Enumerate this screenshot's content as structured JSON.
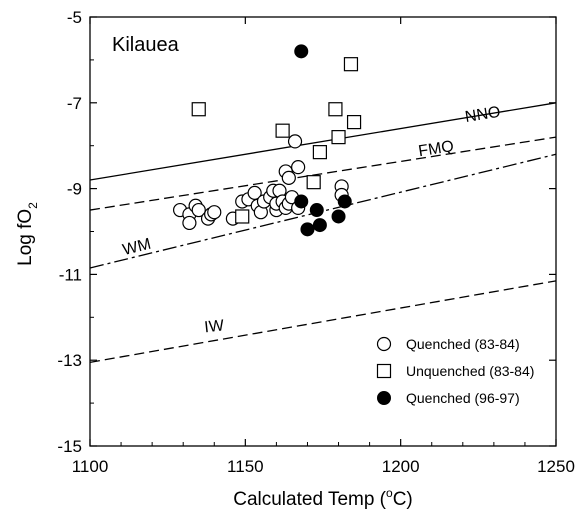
{
  "chart_data": {
    "type": "scatter",
    "title": "",
    "annotation": "Kilauea",
    "xlabel": "Calculated Temp (°C)",
    "xlabel_parts": {
      "main": "Calculated Temp (",
      "superscript": "o",
      "suffix": "C)"
    },
    "ylabel": "Log fO2",
    "ylabel_parts": {
      "main": "Log fO",
      "subscript": "2"
    },
    "xlim": [
      1100,
      1250
    ],
    "ylim": [
      -15,
      -5
    ],
    "xticks": [
      1100,
      1150,
      1200,
      1250
    ],
    "xtick_labels": [
      "1100",
      "1150",
      "1200",
      "1250"
    ],
    "yticks": [
      -15,
      -13,
      -11,
      -9,
      -7,
      -5
    ],
    "ytick_labels": [
      "-15",
      "-13",
      "-11",
      "-9",
      "-7",
      "-5"
    ],
    "grid": false,
    "legend_position": "bottom-right",
    "buffers": [
      {
        "name": "NNO",
        "style": "solid",
        "x": [
          1100,
          1250
        ],
        "y": [
          -8.8,
          -7.0
        ]
      },
      {
        "name": "FMQ",
        "style": "dashed",
        "x": [
          1100,
          1250
        ],
        "y": [
          -9.5,
          -7.8
        ]
      },
      {
        "name": "WM",
        "style": "dashdot",
        "x": [
          1100,
          1250
        ],
        "y": [
          -10.85,
          -8.2
        ]
      },
      {
        "name": "IW",
        "style": "dashed",
        "x": [
          1100,
          1250
        ],
        "y": [
          -13.05,
          -11.15
        ]
      }
    ],
    "series": [
      {
        "name": "Quenched (83-84)",
        "marker": "open-circle",
        "x": [
          1129,
          1132,
          1132,
          1134,
          1135,
          1138,
          1139,
          1140,
          1146,
          1149,
          1151,
          1153,
          1154,
          1155,
          1156,
          1158,
          1159,
          1160,
          1160,
          1161,
          1162,
          1163,
          1163,
          1164,
          1164,
          1165,
          1166,
          1167,
          1167,
          1181,
          1181
        ],
        "y": [
          -9.5,
          -9.6,
          -9.8,
          -9.4,
          -9.5,
          -9.7,
          -9.6,
          -9.55,
          -9.7,
          -9.3,
          -9.25,
          -9.1,
          -9.4,
          -9.55,
          -9.3,
          -9.2,
          -9.05,
          -9.5,
          -9.35,
          -9.05,
          -9.3,
          -9.45,
          -8.6,
          -9.35,
          -8.75,
          -9.2,
          -7.9,
          -9.45,
          -8.5,
          -8.95,
          -9.15
        ]
      },
      {
        "name": "Unquenched (83-84)",
        "marker": "open-square",
        "x": [
          1135,
          1149,
          1162,
          1172,
          1174,
          1179,
          1180,
          1184,
          1185
        ],
        "y": [
          -7.15,
          -9.65,
          -7.65,
          -8.85,
          -8.15,
          -7.15,
          -7.8,
          -6.1,
          -7.45
        ]
      },
      {
        "name": "Quenched (96-97)",
        "marker": "filled-circle",
        "x": [
          1168,
          1168,
          1170,
          1173,
          1174,
          1180,
          1182
        ],
        "y": [
          -5.8,
          -9.3,
          -9.95,
          -9.5,
          -9.85,
          -9.65,
          -9.3
        ]
      }
    ]
  }
}
